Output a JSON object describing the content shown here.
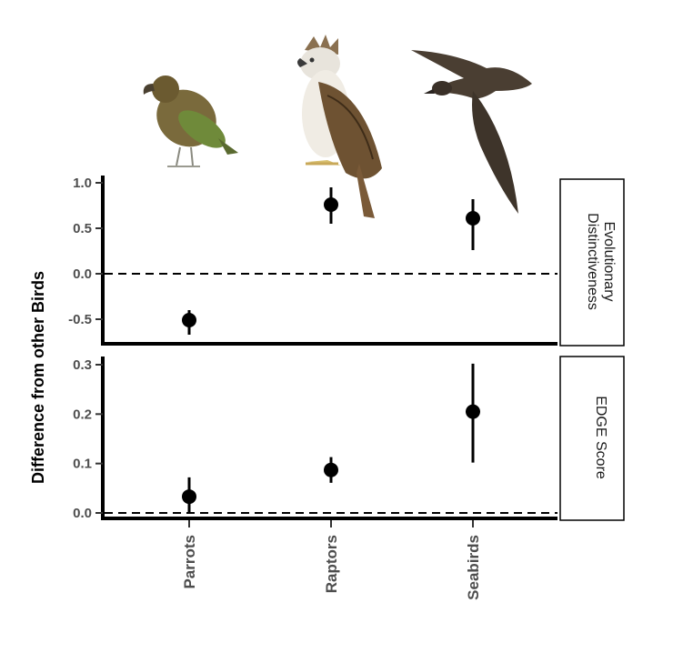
{
  "chart_data": [
    {
      "type": "scatter",
      "panel": "Evolutionary Distinctiveness",
      "strip_lines": [
        "Evolutionary",
        "Distinctiveness"
      ],
      "categories": [
        "Parrots",
        "Raptors",
        "Seabirds"
      ],
      "values": [
        -0.51,
        0.76,
        0.61
      ],
      "lower": [
        -0.67,
        0.55,
        0.26
      ],
      "upper": [
        -0.4,
        0.95,
        0.82
      ],
      "ylim": [
        -0.75,
        1.0
      ],
      "yticks": [
        "1.0",
        "0.5",
        "0.0",
        "-0.5"
      ],
      "ytick_values": [
        1.0,
        0.5,
        0.0,
        -0.5
      ],
      "reference_line": 0.0
    },
    {
      "type": "scatter",
      "panel": "EDGE Score",
      "strip_lines": [
        "EDGE Score"
      ],
      "categories": [
        "Parrots",
        "Raptors",
        "Seabirds"
      ],
      "values": [
        0.033,
        0.087,
        0.205
      ],
      "lower": [
        0.0,
        0.061,
        0.102
      ],
      "upper": [
        0.072,
        0.113,
        0.302
      ],
      "ylim": [
        -0.01,
        0.31
      ],
      "yticks": [
        "0.3",
        "0.2",
        "0.1",
        "0.0"
      ],
      "ytick_values": [
        0.3,
        0.2,
        0.1,
        0.0
      ],
      "reference_line": 0.0
    }
  ],
  "ylabel": "Difference from other Birds",
  "x_categories": [
    "Parrots",
    "Raptors",
    "Seabirds"
  ],
  "images": [
    "parrot-illustration",
    "eagle-illustration",
    "seabird-illustration"
  ],
  "colors": {
    "points": "#000000",
    "reference": "#000000",
    "axis": "#000000"
  }
}
